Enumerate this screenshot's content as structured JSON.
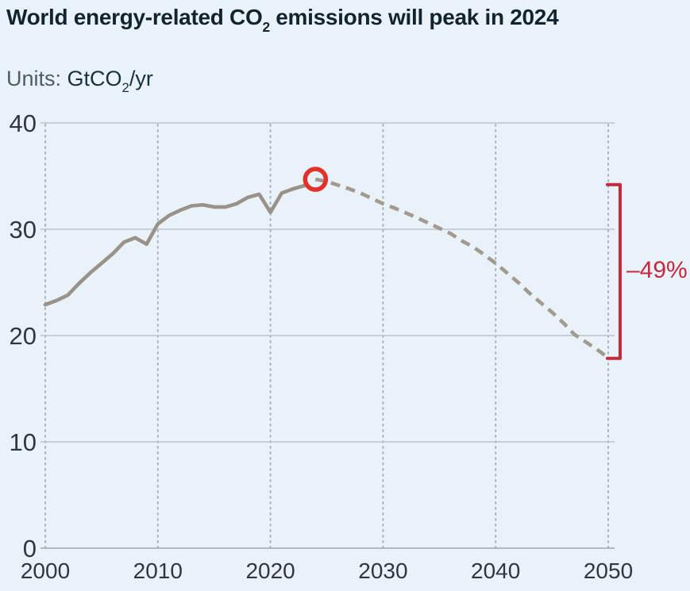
{
  "title": {
    "pre": "World energy-related CO",
    "sub": "2",
    "post": " emissions will peak in 2024"
  },
  "units": {
    "label": "Units:",
    "pre": " GtCO",
    "sub": "2",
    "post": "/yr"
  },
  "colors": {
    "background": "#e9f2f9",
    "title_text": "#14242f",
    "units_label_text": "#4c5c68",
    "units_value_text": "#18303d",
    "tick_text": "#2b3844",
    "grid_solid": "#b8c3cb",
    "axis_line": "#9aa6af",
    "grid_dotted": "#a4b2bc",
    "line_historical": "#9a9288",
    "line_forecast": "#a29a8e",
    "peak_circle": "#e23128",
    "accent_red": "#c5293d"
  },
  "chart_data": {
    "type": "line",
    "title": "World energy-related CO2 emissions will peak in 2024",
    "ylabel": "GtCO2/yr",
    "xlabel": "",
    "xlim": [
      2000,
      2050
    ],
    "ylim": [
      0,
      40
    ],
    "x_ticks": [
      2000,
      2010,
      2020,
      2030,
      2040,
      2050
    ],
    "y_ticks": [
      40,
      30,
      20,
      10,
      0
    ],
    "grid": "horizontal solid lines, vertical dotted lines at decades",
    "legend_position": "none",
    "series": [
      {
        "name": "historical",
        "style": "solid",
        "color": "#9a9288",
        "x": [
          2000,
          2001,
          2002,
          2003,
          2004,
          2005,
          2006,
          2007,
          2008,
          2009,
          2010,
          2011,
          2012,
          2013,
          2014,
          2015,
          2016,
          2017,
          2018,
          2019,
          2020,
          2021,
          2022,
          2023
        ],
        "values": [
          22.9,
          23.3,
          23.8,
          24.9,
          25.9,
          26.8,
          27.7,
          28.8,
          29.2,
          28.6,
          30.5,
          31.3,
          31.8,
          32.2,
          32.3,
          32.1,
          32.1,
          32.4,
          33.0,
          33.3,
          31.6,
          33.4,
          33.8,
          34.1
        ]
      },
      {
        "name": "forecast",
        "style": "dashed",
        "color": "#a29a8e",
        "x": [
          2024,
          2025,
          2026,
          2027,
          2028,
          2029,
          2030,
          2031,
          2032,
          2033,
          2034,
          2035,
          2036,
          2037,
          2038,
          2039,
          2040,
          2041,
          2042,
          2043,
          2044,
          2045,
          2046,
          2047,
          2048,
          2049,
          2050
        ],
        "values": [
          34.7,
          34.5,
          34.15,
          33.8,
          33.4,
          32.9,
          32.4,
          32.0,
          31.55,
          31.1,
          30.6,
          30.1,
          29.6,
          28.9,
          28.35,
          27.6,
          26.8,
          25.9,
          25.0,
          24.0,
          23.1,
          22.2,
          21.2,
          20.1,
          19.4,
          18.7,
          17.9
        ]
      }
    ],
    "annotations": {
      "peak": {
        "x": 2024,
        "value": 34.7,
        "marker": "red-circle",
        "color": "#e23128"
      },
      "change": {
        "label": "–49%",
        "bracket_from": 34.2,
        "bracket_to": 17.85,
        "color": "#c5293d"
      }
    }
  }
}
